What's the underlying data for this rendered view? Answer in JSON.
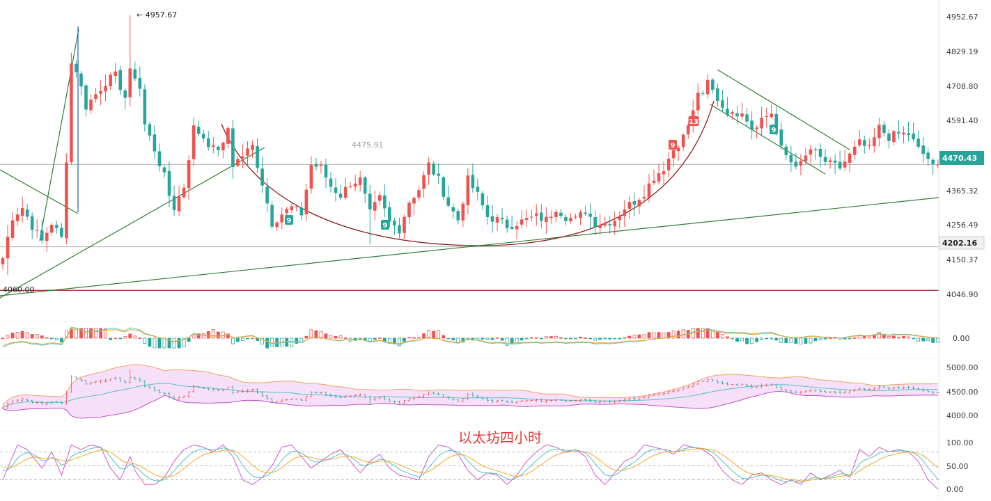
{
  "chart_data": {
    "type": "candlestick",
    "title": "以太坊四小时",
    "main": {
      "y_axis_ticks": [
        "4952.67",
        "4829.19",
        "4708.80",
        "4591.40",
        "4470.43",
        "4365.32",
        "4256.49",
        "4202.16",
        "4150.37",
        "4046.90"
      ],
      "ylim": [
        4000,
        4980
      ],
      "current_price": "4470.43",
      "support_price": "4202.16",
      "low_line": "4060.00",
      "high_annotation": "← 4957.67",
      "mid_annotation": "4475.91",
      "sequence_marks": [
        {
          "label": "9",
          "color": "#26a69a"
        },
        {
          "label": "9",
          "color": "#26a69a"
        },
        {
          "label": "9",
          "color": "#ef5350"
        },
        {
          "label": "13",
          "color": "#ef5350"
        },
        {
          "label": "9",
          "color": "#26a69a"
        }
      ],
      "anchors": [
        [
          0,
          4165
        ],
        [
          2,
          4300
        ],
        [
          4,
          4330
        ],
        [
          6,
          4270
        ],
        [
          8,
          4220
        ],
        [
          10,
          4280
        ],
        [
          12,
          4230
        ],
        [
          13,
          4490
        ],
        [
          14,
          4800
        ],
        [
          15,
          4780
        ],
        [
          17,
          4660
        ],
        [
          19,
          4700
        ],
        [
          21,
          4740
        ],
        [
          23,
          4760
        ],
        [
          25,
          4690
        ],
        [
          26,
          4770
        ],
        [
          27,
          4760
        ],
        [
          28,
          4720
        ],
        [
          29,
          4600
        ],
        [
          31,
          4520
        ],
        [
          33,
          4430
        ],
        [
          34,
          4370
        ],
        [
          35,
          4330
        ],
        [
          37,
          4400
        ],
        [
          39,
          4590
        ],
        [
          41,
          4560
        ],
        [
          43,
          4520
        ],
        [
          45,
          4530
        ],
        [
          46,
          4590
        ],
        [
          47,
          4470
        ],
        [
          49,
          4500
        ],
        [
          51,
          4530
        ],
        [
          53,
          4410
        ],
        [
          55,
          4280
        ],
        [
          57,
          4310
        ],
        [
          59,
          4330
        ],
        [
          61,
          4310
        ],
        [
          63,
          4470
        ],
        [
          65,
          4460
        ],
        [
          67,
          4400
        ],
        [
          69,
          4370
        ],
        [
          71,
          4410
        ],
        [
          73,
          4420
        ],
        [
          75,
          4310
        ],
        [
          77,
          4360
        ],
        [
          79,
          4280
        ],
        [
          81,
          4260
        ],
        [
          83,
          4350
        ],
        [
          85,
          4390
        ],
        [
          87,
          4470
        ],
        [
          89,
          4420
        ],
        [
          91,
          4340
        ],
        [
          93,
          4290
        ],
        [
          95,
          4420
        ],
        [
          97,
          4370
        ],
        [
          99,
          4300
        ],
        [
          101,
          4290
        ],
        [
          103,
          4270
        ],
        [
          105,
          4280
        ],
        [
          107,
          4290
        ],
        [
          109,
          4300
        ],
        [
          111,
          4290
        ],
        [
          113,
          4330
        ],
        [
          115,
          4300
        ],
        [
          117,
          4290
        ],
        [
          119,
          4320
        ],
        [
          121,
          4280
        ],
        [
          123,
          4280
        ],
        [
          125,
          4290
        ],
        [
          127,
          4330
        ],
        [
          129,
          4350
        ],
        [
          131,
          4380
        ],
        [
          133,
          4430
        ],
        [
          135,
          4460
        ],
        [
          137,
          4520
        ],
        [
          139,
          4560
        ],
        [
          141,
          4640
        ],
        [
          142,
          4710
        ],
        [
          143,
          4690
        ],
        [
          144,
          4740
        ],
        [
          145,
          4710
        ],
        [
          147,
          4660
        ],
        [
          149,
          4630
        ],
        [
          151,
          4650
        ],
        [
          153,
          4590
        ],
        [
          155,
          4620
        ],
        [
          157,
          4640
        ],
        [
          159,
          4520
        ],
        [
          161,
          4480
        ],
        [
          163,
          4470
        ],
        [
          165,
          4520
        ],
        [
          167,
          4490
        ],
        [
          169,
          4470
        ],
        [
          171,
          4460
        ],
        [
          173,
          4500
        ],
        [
          175,
          4540
        ],
        [
          177,
          4520
        ],
        [
          179,
          4590
        ],
        [
          181,
          4560
        ],
        [
          183,
          4570
        ],
        [
          185,
          4570
        ],
        [
          187,
          4520
        ],
        [
          189,
          4490
        ],
        [
          190,
          4460
        ],
        [
          191,
          4470
        ]
      ]
    },
    "macd": {
      "axis_label": "0.00"
    },
    "boll": {
      "axis_ticks": [
        "5000.00",
        "4500.00",
        "4000.00"
      ]
    },
    "kdj": {
      "axis_ticks": [
        "100.00",
        "50.00",
        "0.00"
      ],
      "j_anchors": [
        [
          0,
          20
        ],
        [
          3,
          95
        ],
        [
          5,
          85
        ],
        [
          8,
          45
        ],
        [
          10,
          80
        ],
        [
          12,
          30
        ],
        [
          14,
          95
        ],
        [
          16,
          85
        ],
        [
          18,
          95
        ],
        [
          20,
          90
        ],
        [
          22,
          45
        ],
        [
          24,
          20
        ],
        [
          26,
          70
        ],
        [
          27,
          40
        ],
        [
          29,
          10
        ],
        [
          31,
          10
        ],
        [
          33,
          25
        ],
        [
          35,
          60
        ],
        [
          37,
          85
        ],
        [
          39,
          95
        ],
        [
          41,
          90
        ],
        [
          43,
          80
        ],
        [
          45,
          95
        ],
        [
          47,
          70
        ],
        [
          49,
          20
        ],
        [
          51,
          10
        ],
        [
          53,
          25
        ],
        [
          55,
          50
        ],
        [
          57,
          90
        ],
        [
          59,
          95
        ],
        [
          61,
          70
        ],
        [
          63,
          45
        ],
        [
          65,
          60
        ],
        [
          67,
          75
        ],
        [
          69,
          85
        ],
        [
          71,
          60
        ],
        [
          73,
          35
        ],
        [
          75,
          60
        ],
        [
          77,
          75
        ],
        [
          79,
          45
        ],
        [
          81,
          30
        ],
        [
          83,
          25
        ],
        [
          85,
          20
        ],
        [
          87,
          70
        ],
        [
          89,
          95
        ],
        [
          91,
          90
        ],
        [
          93,
          75
        ],
        [
          95,
          40
        ],
        [
          97,
          20
        ],
        [
          99,
          35
        ],
        [
          101,
          30
        ],
        [
          103,
          10
        ],
        [
          105,
          30
        ],
        [
          107,
          60
        ],
        [
          109,
          80
        ],
        [
          111,
          95
        ],
        [
          113,
          90
        ],
        [
          115,
          80
        ],
        [
          117,
          85
        ],
        [
          119,
          70
        ],
        [
          121,
          30
        ],
        [
          123,
          10
        ],
        [
          125,
          35
        ],
        [
          127,
          60
        ],
        [
          129,
          70
        ],
        [
          131,
          95
        ],
        [
          133,
          90
        ],
        [
          135,
          85
        ],
        [
          137,
          75
        ],
        [
          139,
          95
        ],
        [
          141,
          90
        ],
        [
          143,
          85
        ],
        [
          145,
          70
        ],
        [
          147,
          40
        ],
        [
          149,
          20
        ],
        [
          151,
          10
        ],
        [
          153,
          30
        ],
        [
          155,
          35
        ],
        [
          157,
          20
        ],
        [
          159,
          10
        ],
        [
          161,
          20
        ],
        [
          163,
          10
        ],
        [
          165,
          35
        ],
        [
          167,
          20
        ],
        [
          169,
          30
        ],
        [
          171,
          40
        ],
        [
          173,
          25
        ],
        [
          175,
          85
        ],
        [
          177,
          70
        ],
        [
          179,
          90
        ],
        [
          181,
          80
        ],
        [
          183,
          85
        ],
        [
          185,
          80
        ],
        [
          187,
          60
        ],
        [
          189,
          20
        ],
        [
          191,
          0
        ]
      ]
    }
  }
}
